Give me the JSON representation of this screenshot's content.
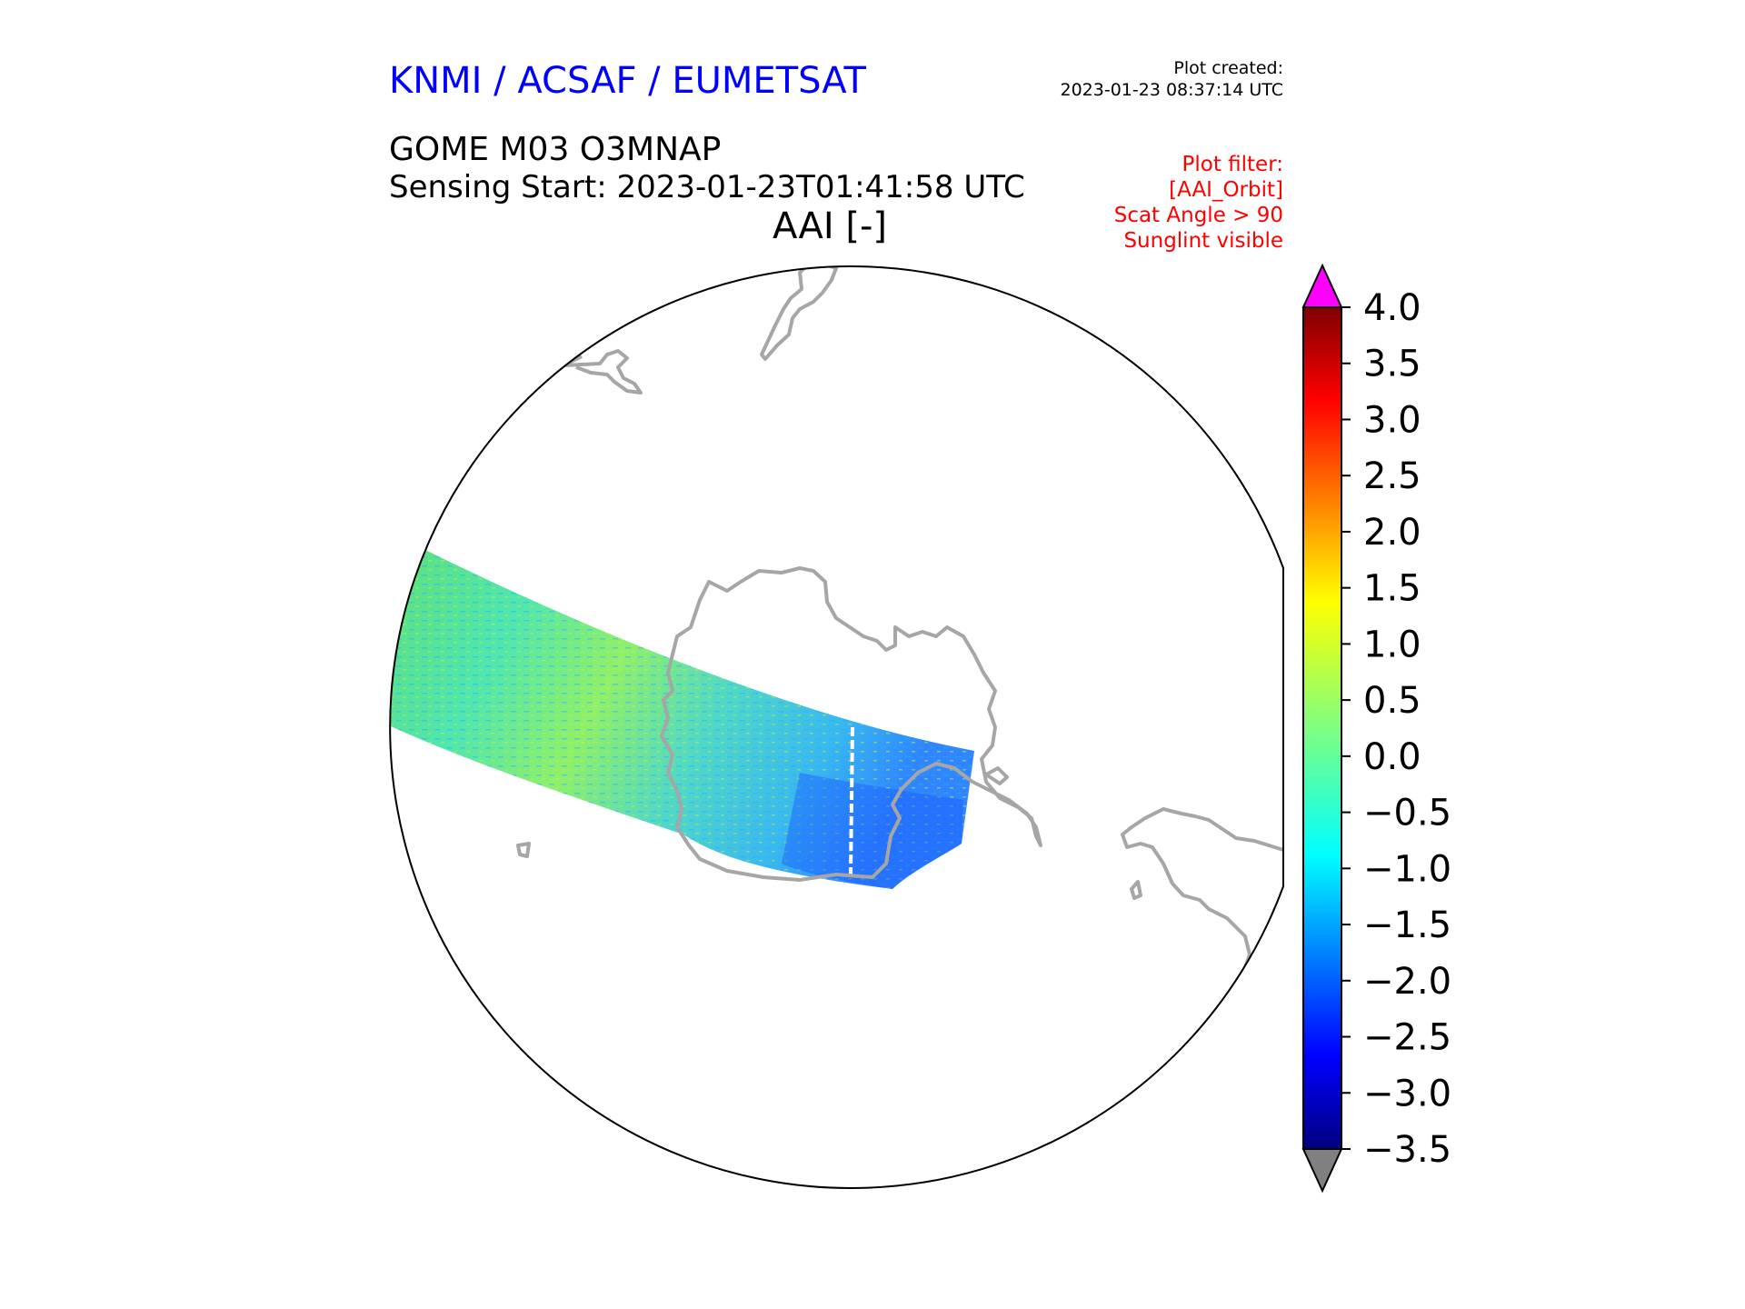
{
  "header": {
    "agency": "KNMI / ACSAF / EUMETSAT",
    "plot_created_label": "Plot created:",
    "plot_created_value": "2023-01-23 08:37:14 UTC",
    "product": "GOME M03 O3MNAP",
    "sensing_start": "Sensing Start: 2023-01-23T01:41:58 UTC",
    "variable": "AAI [-]"
  },
  "filters": [
    "Plot filter:",
    "[AAI_Orbit]",
    "Scat Angle > 90",
    "Sunglint visible"
  ],
  "colorbar": {
    "min": -3.5,
    "max": 4.0,
    "ticks": [
      "4.0",
      "3.5",
      "3.0",
      "2.5",
      "2.0",
      "1.5",
      "1.0",
      "0.5",
      "0.0",
      "−0.5",
      "−1.0",
      "−1.5",
      "−2.0",
      "−2.5",
      "−3.0",
      "−3.5"
    ],
    "over_color": "#ff00ff",
    "under_color": "#808080",
    "colormap": "jet"
  },
  "map": {
    "projection": "polar stereographic (south pole)",
    "coastline_color": "#a6a6a6",
    "swath_typical_aai": 0.0
  }
}
